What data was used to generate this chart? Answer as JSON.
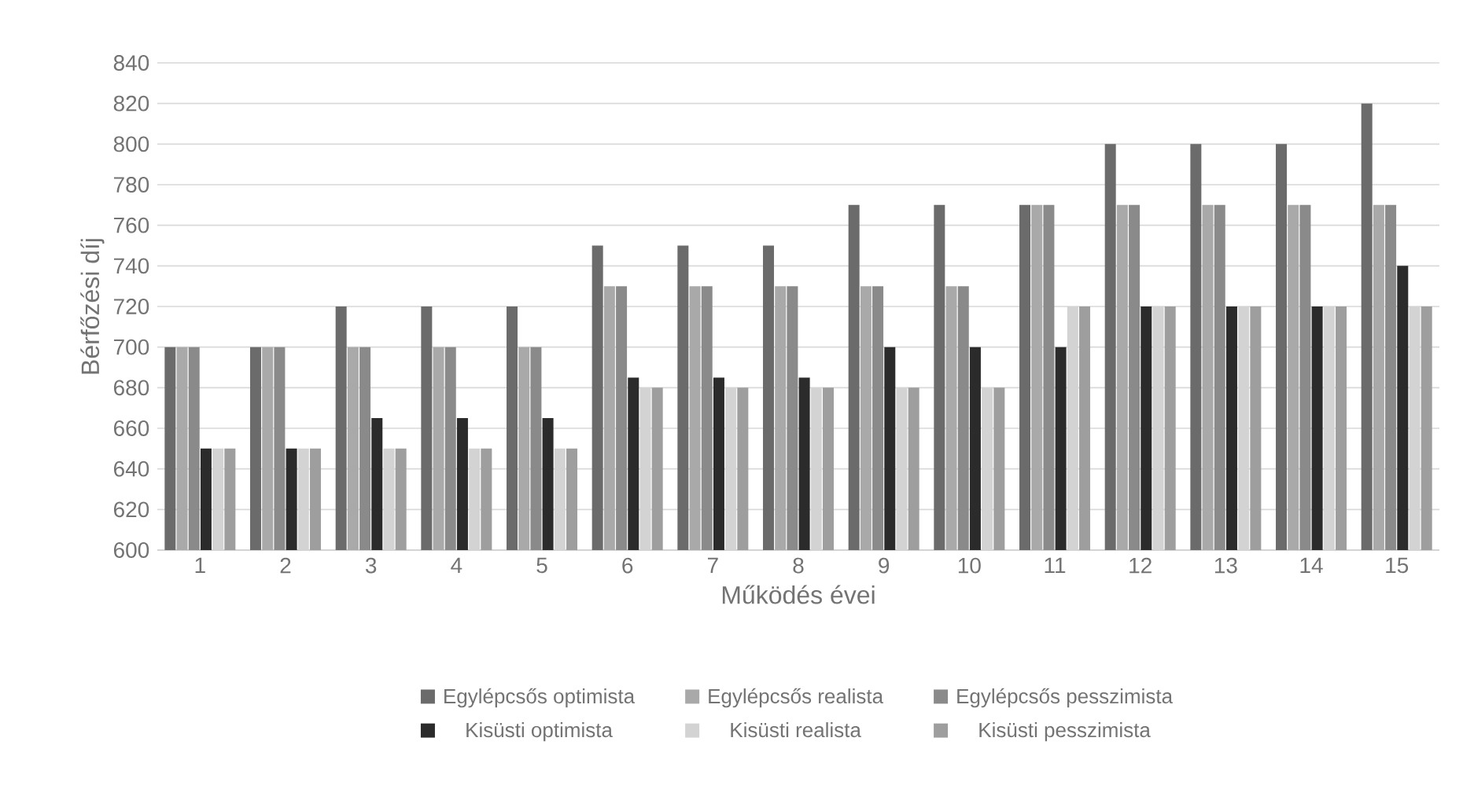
{
  "chart_data": {
    "type": "bar",
    "xlabel": "Működés évei",
    "ylabel": "Bérfőzési díj",
    "categories": [
      "1",
      "2",
      "3",
      "4",
      "5",
      "6",
      "7",
      "8",
      "9",
      "10",
      "11",
      "12",
      "13",
      "14",
      "15"
    ],
    "series": [
      {
        "name": "Egylépcsős optimista",
        "color": "#6b6b6b",
        "values": [
          700,
          700,
          720,
          720,
          720,
          750,
          750,
          750,
          770,
          770,
          770,
          800,
          800,
          800,
          820
        ]
      },
      {
        "name": "Egylépcsős realista",
        "color": "#a9a9a9",
        "values": [
          700,
          700,
          700,
          700,
          700,
          730,
          730,
          730,
          730,
          730,
          770,
          770,
          770,
          770,
          770
        ]
      },
      {
        "name": "Egylépcsős pesszimista",
        "color": "#8a8a8a",
        "values": [
          700,
          700,
          700,
          700,
          700,
          730,
          730,
          730,
          730,
          730,
          770,
          770,
          770,
          770,
          770
        ]
      },
      {
        "name": "Kisüsti optimista",
        "color": "#2b2b2b",
        "values": [
          650,
          650,
          665,
          665,
          665,
          685,
          685,
          685,
          700,
          700,
          700,
          720,
          720,
          720,
          740
        ]
      },
      {
        "name": "Kisüsti realista",
        "color": "#d3d3d3",
        "values": [
          650,
          650,
          650,
          650,
          650,
          680,
          680,
          680,
          680,
          680,
          720,
          720,
          720,
          720,
          720
        ]
      },
      {
        "name": "Kisüsti pesszimista",
        "color": "#9e9e9e",
        "values": [
          650,
          650,
          650,
          650,
          650,
          680,
          680,
          680,
          680,
          680,
          720,
          720,
          720,
          720,
          720
        ]
      }
    ],
    "ylim": [
      600,
      840
    ],
    "yticks": [
      600,
      620,
      640,
      660,
      680,
      700,
      720,
      740,
      760,
      780,
      800,
      820,
      840
    ],
    "grid": "y",
    "legend": "bottom"
  }
}
